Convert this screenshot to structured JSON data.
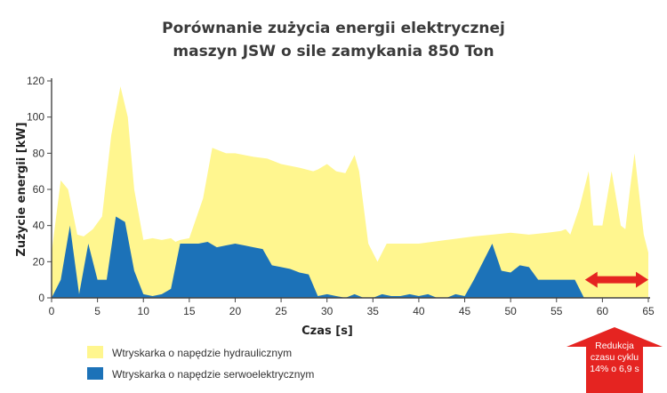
{
  "chart_data": {
    "type": "area",
    "title_lines": [
      "Porównanie zużycia energii elektrycznej",
      "maszyn JSW o sile zamykania 850 Ton"
    ],
    "xlabel": "Czas [s]",
    "ylabel": "Zużycie energii [kW]",
    "xlim": [
      0,
      65
    ],
    "ylim": [
      0,
      120
    ],
    "xticks": [
      0,
      5,
      10,
      15,
      20,
      25,
      30,
      35,
      40,
      45,
      50,
      55,
      60,
      65
    ],
    "yticks": [
      0,
      20,
      40,
      60,
      80,
      100,
      120
    ],
    "grid": false,
    "legend_position": "bottom-left",
    "series": [
      {
        "name": "Wtryskarka o napędzie hydraulicznym",
        "color": "#fff68f",
        "x": [
          0,
          0.5,
          1,
          1.8,
          2.8,
          3.5,
          4.5,
          5.5,
          6.5,
          7.5,
          8.3,
          9,
          10,
          11,
          12,
          13,
          13.5,
          14,
          15,
          16.5,
          17.5,
          19,
          20,
          22,
          23.5,
          25,
          27,
          28.5,
          29,
          30,
          31,
          32,
          33,
          33.5,
          34.5,
          35.5,
          36.5,
          37.5,
          40,
          43,
          46,
          48,
          50,
          52,
          54,
          55.5,
          56,
          56.5,
          57.5,
          58.5,
          59,
          60,
          61,
          62,
          62.5,
          63,
          63.5,
          64.5,
          65
        ],
        "values": [
          25,
          45,
          65,
          60,
          35,
          34,
          38,
          45,
          90,
          117,
          100,
          60,
          32,
          33,
          32,
          33,
          31,
          32,
          33,
          55,
          83,
          80,
          80,
          78,
          77,
          74,
          72,
          70,
          71,
          74,
          70,
          69,
          79,
          70,
          30,
          20,
          30,
          30,
          30,
          32,
          34,
          35,
          36,
          35,
          36,
          37,
          38,
          35,
          50,
          70,
          40,
          40,
          70,
          40,
          38,
          60,
          80,
          35,
          25
        ]
      },
      {
        "name": "Wtryskarka o napędzie serwoelektrycznym",
        "color": "#1c72b8",
        "x": [
          0,
          1,
          2,
          3,
          4,
          5,
          6,
          7,
          8,
          9,
          10,
          11,
          12,
          13,
          14,
          15,
          16,
          17,
          18,
          19,
          20,
          21,
          22,
          23,
          24,
          25,
          26,
          27,
          28,
          29,
          30,
          31,
          32,
          33,
          34,
          35,
          36,
          37,
          38,
          39,
          40,
          41,
          42,
          43,
          44,
          45,
          46,
          47,
          48,
          49,
          50,
          51,
          52,
          53,
          54,
          55,
          56,
          57,
          58
        ],
        "values": [
          0,
          10,
          40,
          2,
          30,
          10,
          10,
          45,
          42,
          15,
          2,
          1,
          2,
          5,
          30,
          30,
          30,
          31,
          28,
          29,
          30,
          29,
          28,
          27,
          18,
          17,
          16,
          14,
          13,
          1,
          2,
          1,
          0,
          2,
          0,
          0,
          2,
          1,
          1,
          2,
          1,
          2,
          0,
          0,
          2,
          1,
          10,
          20,
          30,
          15,
          14,
          18,
          17,
          10,
          10,
          10,
          10,
          10,
          0
        ]
      }
    ],
    "annotation": {
      "text_lines": [
        "Redukcja",
        "czasu cyklu",
        "14% o 6,9 s"
      ],
      "x_from": 58.1,
      "x_to": 65,
      "y": 10,
      "arrow_color": "#e52421"
    }
  }
}
